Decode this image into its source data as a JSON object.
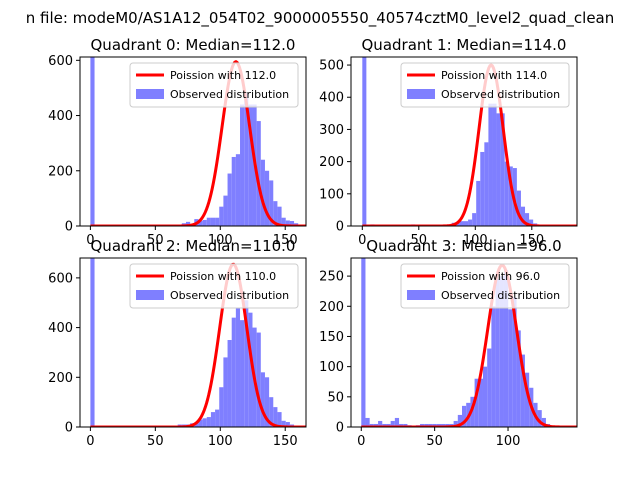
{
  "figure": {
    "suptitle": "n file: modeM0/AS1A12_054T02_9000005550_40574cztM0_level2_quad_clean"
  },
  "colors": {
    "bars": "#7f7fff",
    "line": "#ff0000",
    "axes": "#000000",
    "background": "#ffffff"
  },
  "chart_data": [
    {
      "type": "histogram",
      "title": "Quadrant 0: Median=112.0",
      "legend": {
        "placement": "top-right",
        "line_label": "Poission with 112.0",
        "bar_label": "Observed distribution"
      },
      "xlim": [
        -8,
        166
      ],
      "ylim": [
        0,
        612
      ],
      "xticks": [
        0,
        50,
        100,
        150
      ],
      "yticks": [
        0,
        200,
        400,
        600
      ],
      "median": 112.0,
      "curve_peak": 595,
      "bin_width": 3.2,
      "bins": [
        [
          0,
          612
        ],
        [
          3.2,
          0
        ],
        [
          6.4,
          0
        ],
        [
          9.6,
          0
        ],
        [
          12.8,
          0
        ],
        [
          16,
          0
        ],
        [
          19.2,
          0
        ],
        [
          22.4,
          0
        ],
        [
          25.6,
          0
        ],
        [
          28.8,
          0
        ],
        [
          32,
          0
        ],
        [
          35.2,
          0
        ],
        [
          38.4,
          0
        ],
        [
          41.6,
          0
        ],
        [
          44.8,
          0
        ],
        [
          48,
          0
        ],
        [
          51.2,
          0
        ],
        [
          54.4,
          0
        ],
        [
          57.6,
          0
        ],
        [
          60.8,
          0
        ],
        [
          64,
          0
        ],
        [
          67.2,
          0
        ],
        [
          70.4,
          10
        ],
        [
          73.6,
          15
        ],
        [
          76.8,
          8
        ],
        [
          80,
          25
        ],
        [
          83.2,
          18
        ],
        [
          86.4,
          22
        ],
        [
          89.6,
          30
        ],
        [
          92.8,
          30
        ],
        [
          96,
          30
        ],
        [
          99.2,
          70
        ],
        [
          102.4,
          110
        ],
        [
          105.6,
          190
        ],
        [
          108.8,
          250
        ],
        [
          112,
          260
        ],
        [
          115.2,
          440
        ],
        [
          118.4,
          480
        ],
        [
          121.6,
          440
        ],
        [
          124.8,
          440
        ],
        [
          128,
          380
        ],
        [
          131.2,
          240
        ],
        [
          134.4,
          200
        ],
        [
          137.6,
          165
        ],
        [
          140.8,
          90
        ],
        [
          144,
          70
        ],
        [
          147.2,
          30
        ],
        [
          150.4,
          20
        ],
        [
          153.6,
          18
        ],
        [
          156.8,
          10
        ]
      ]
    },
    {
      "type": "histogram",
      "title": "Quadrant 1: Median=114.0",
      "legend": {
        "placement": "top-right",
        "line_label": "Poission with 114.0",
        "bar_label": "Observed distribution"
      },
      "xlim": [
        -10,
        190
      ],
      "ylim": [
        0,
        525
      ],
      "xticks": [
        0,
        50,
        100,
        150
      ],
      "yticks": [
        0,
        100,
        200,
        300,
        400,
        500
      ],
      "median": 114.0,
      "curve_peak": 500,
      "bin_width": 3.6,
      "bins": [
        [
          0,
          525
        ],
        [
          3.6,
          0
        ],
        [
          7.2,
          5
        ],
        [
          10.8,
          0
        ],
        [
          14.4,
          0
        ],
        [
          18,
          0
        ],
        [
          21.6,
          0
        ],
        [
          25.2,
          0
        ],
        [
          28.8,
          0
        ],
        [
          32.4,
          0
        ],
        [
          36,
          0
        ],
        [
          39.6,
          0
        ],
        [
          43.2,
          5
        ],
        [
          46.8,
          0
        ],
        [
          50.4,
          0
        ],
        [
          54,
          0
        ],
        [
          57.6,
          0
        ],
        [
          61.2,
          0
        ],
        [
          64.8,
          0
        ],
        [
          68.4,
          0
        ],
        [
          72,
          0
        ],
        [
          75.6,
          5
        ],
        [
          79.2,
          10
        ],
        [
          82.8,
          10
        ],
        [
          86.4,
          15
        ],
        [
          90,
          15
        ],
        [
          93.6,
          20
        ],
        [
          97.2,
          40
        ],
        [
          100.8,
          140
        ],
        [
          104.4,
          230
        ],
        [
          108,
          260
        ],
        [
          111.6,
          380
        ],
        [
          115.2,
          380
        ],
        [
          118.8,
          350
        ],
        [
          122.4,
          350
        ],
        [
          126,
          200
        ],
        [
          129.6,
          185
        ],
        [
          133.2,
          180
        ],
        [
          136.8,
          110
        ],
        [
          140.4,
          60
        ],
        [
          144,
          40
        ],
        [
          147.6,
          20
        ],
        [
          151.2,
          8
        ],
        [
          154.8,
          0
        ],
        [
          158.4,
          0
        ],
        [
          162,
          0
        ],
        [
          165.6,
          0
        ],
        [
          169.2,
          0
        ],
        [
          172.8,
          0
        ],
        [
          176.4,
          0
        ]
      ]
    },
    {
      "type": "histogram",
      "title": "Quadrant 2: Median=110.0",
      "legend": {
        "placement": "top-right",
        "line_label": "Poission with 110.0",
        "bar_label": "Observed distribution"
      },
      "xlim": [
        -8,
        166
      ],
      "ylim": [
        0,
        680
      ],
      "xticks": [
        0,
        50,
        100,
        150
      ],
      "yticks": [
        0,
        200,
        400,
        600
      ],
      "median": 110.0,
      "curve_peak": 655,
      "bin_width": 3.2,
      "bins": [
        [
          0,
          680
        ],
        [
          3.2,
          0
        ],
        [
          6.4,
          0
        ],
        [
          9.6,
          0
        ],
        [
          12.8,
          0
        ],
        [
          16,
          0
        ],
        [
          19.2,
          0
        ],
        [
          22.4,
          0
        ],
        [
          25.6,
          0
        ],
        [
          28.8,
          0
        ],
        [
          32,
          0
        ],
        [
          35.2,
          0
        ],
        [
          38.4,
          0
        ],
        [
          41.6,
          0
        ],
        [
          44.8,
          0
        ],
        [
          48,
          0
        ],
        [
          51.2,
          0
        ],
        [
          54.4,
          0
        ],
        [
          57.6,
          0
        ],
        [
          60.8,
          0
        ],
        [
          64,
          5
        ],
        [
          67.2,
          10
        ],
        [
          70.4,
          10
        ],
        [
          73.6,
          10
        ],
        [
          76.8,
          15
        ],
        [
          80,
          15
        ],
        [
          83.2,
          30
        ],
        [
          86.4,
          35
        ],
        [
          89.6,
          40
        ],
        [
          92.8,
          60
        ],
        [
          96,
          70
        ],
        [
          99.2,
          160
        ],
        [
          102.4,
          280
        ],
        [
          105.6,
          350
        ],
        [
          108.8,
          440
        ],
        [
          112,
          480
        ],
        [
          115.2,
          430
        ],
        [
          118.4,
          510
        ],
        [
          121.6,
          460
        ],
        [
          124.8,
          400
        ],
        [
          128,
          380
        ],
        [
          131.2,
          220
        ],
        [
          134.4,
          200
        ],
        [
          137.6,
          120
        ],
        [
          140.8,
          80
        ],
        [
          144,
          60
        ],
        [
          147.2,
          25
        ],
        [
          150.4,
          20
        ],
        [
          153.6,
          10
        ]
      ]
    },
    {
      "type": "histogram",
      "title": "Quadrant 3: Median=96.0",
      "legend": {
        "placement": "top-right",
        "line_label": "Poission with 96.0",
        "bar_label": "Observed distribution"
      },
      "xlim": [
        -7,
        147
      ],
      "ylim": [
        0,
        280
      ],
      "xticks": [
        0,
        50,
        100
      ],
      "yticks": [
        0,
        50,
        100,
        150,
        200,
        250
      ],
      "median": 96.0,
      "curve_peak": 268,
      "bin_width": 2.86,
      "bins": [
        [
          0,
          280
        ],
        [
          2.86,
          15
        ],
        [
          5.72,
          5
        ],
        [
          8.58,
          5
        ],
        [
          11.44,
          10
        ],
        [
          14.3,
          5
        ],
        [
          17.16,
          5
        ],
        [
          20.02,
          10
        ],
        [
          22.88,
          15
        ],
        [
          25.74,
          5
        ],
        [
          28.6,
          5
        ],
        [
          31.46,
          3
        ],
        [
          34.32,
          0
        ],
        [
          37.18,
          3
        ],
        [
          40.04,
          5
        ],
        [
          42.9,
          5
        ],
        [
          45.76,
          5
        ],
        [
          48.62,
          5
        ],
        [
          51.48,
          5
        ],
        [
          54.34,
          5
        ],
        [
          57.2,
          5
        ],
        [
          60.06,
          5
        ],
        [
          62.92,
          10
        ],
        [
          65.78,
          20
        ],
        [
          68.64,
          35
        ],
        [
          71.5,
          40
        ],
        [
          74.36,
          50
        ],
        [
          77.22,
          80
        ],
        [
          80.08,
          80
        ],
        [
          82.94,
          100
        ],
        [
          85.8,
          130
        ],
        [
          88.66,
          200
        ],
        [
          91.52,
          245
        ],
        [
          94.38,
          250
        ],
        [
          97.24,
          260
        ],
        [
          100.1,
          195
        ],
        [
          102.96,
          215
        ],
        [
          105.82,
          160
        ],
        [
          108.68,
          120
        ],
        [
          111.54,
          90
        ],
        [
          114.4,
          65
        ],
        [
          117.26,
          40
        ],
        [
          120.12,
          28
        ],
        [
          122.98,
          15
        ],
        [
          125.84,
          5
        ],
        [
          128.7,
          2
        ],
        [
          131.56,
          0
        ],
        [
          134.42,
          0
        ],
        [
          137.28,
          0
        ]
      ]
    }
  ]
}
